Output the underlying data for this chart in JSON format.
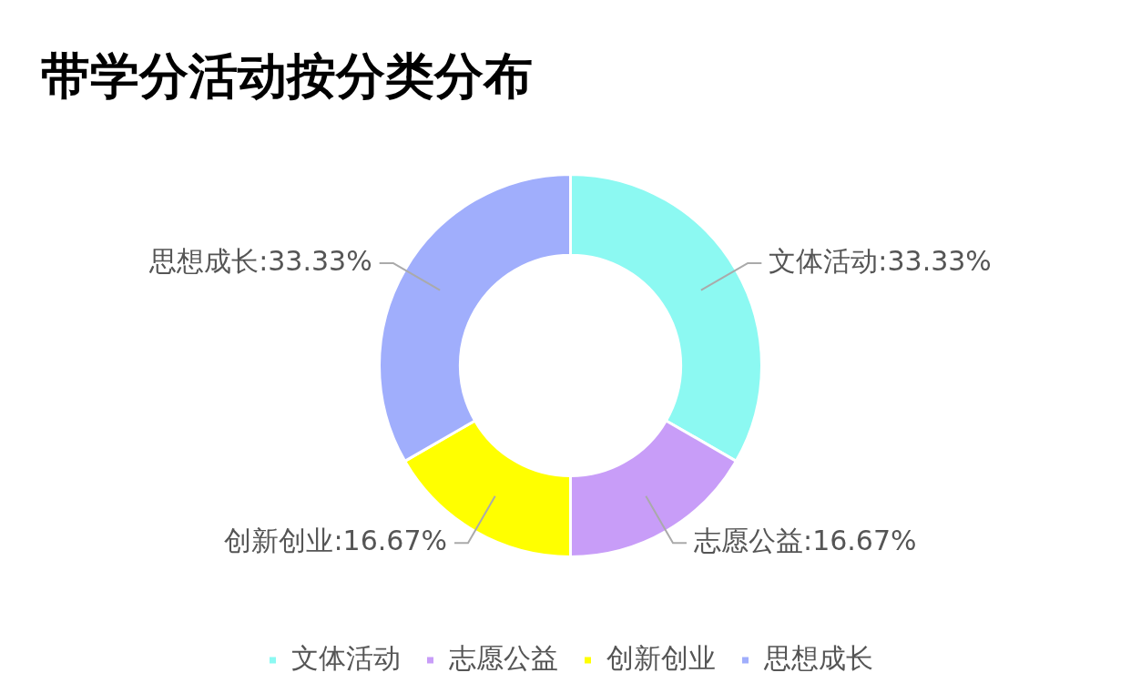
{
  "chart_data": {
    "type": "donut",
    "title": "带学分活动按分类分布",
    "categories": [
      "文体活动",
      "志愿公益",
      "创新创业",
      "思想成长"
    ],
    "values": [
      33.33,
      16.67,
      16.67,
      33.33
    ],
    "colors": [
      "#8cf9f2",
      "#c89df8",
      "#ffff00",
      "#a0aefc"
    ],
    "value_labels": [
      "文体活动:33.33%",
      "志愿公益:16.67%",
      "创新创业:16.67%",
      "思想成长:33.33%"
    ],
    "legend": "bottom"
  }
}
